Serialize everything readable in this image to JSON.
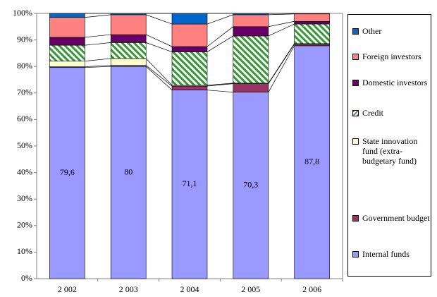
{
  "chart_data": {
    "type": "bar",
    "stacked": true,
    "grid": false,
    "legend": "right",
    "categories": [
      "2 002",
      "2 003",
      "2 004",
      "2 005",
      "2 006"
    ],
    "ylim": [
      0,
      100
    ],
    "yticks": [
      {
        "value": 0,
        "label": "0%"
      },
      {
        "value": 10,
        "label": "10%"
      },
      {
        "value": 20,
        "label": "20%"
      },
      {
        "value": 30,
        "label": "30%"
      },
      {
        "value": 40,
        "label": "40%"
      },
      {
        "value": 50,
        "label": "50%"
      },
      {
        "value": 60,
        "label": "60%"
      },
      {
        "value": 70,
        "label": "70%"
      },
      {
        "value": 80,
        "label": "80%"
      },
      {
        "value": 90,
        "label": "90%"
      },
      {
        "value": 100,
        "label": "100%"
      }
    ],
    "series": [
      {
        "name": "Internal funds",
        "color": "#9999ff",
        "values": [
          79.6,
          80,
          71.1,
          70.3,
          87.8
        ],
        "value_labels": [
          "79,6",
          "80",
          "71,1",
          "70,3",
          "87,8"
        ]
      },
      {
        "name": "Government budget",
        "color": "#993366",
        "values": [
          0.3,
          0.4,
          1.5,
          3.2,
          0.6
        ]
      },
      {
        "name": "State innovation fund (extra-budgetary fund)",
        "color": "#ffffcc",
        "values": [
          2.1,
          2.6,
          0.3,
          0.2,
          0.2
        ]
      },
      {
        "name": "Credit",
        "color": "#339933",
        "hatch": true,
        "values": [
          6,
          6,
          12.6,
          17.8,
          7.4
        ]
      },
      {
        "name": "Domestic investors",
        "color": "#660066",
        "values": [
          3,
          3,
          2,
          3.5,
          1
        ]
      },
      {
        "name": "Foreign investors",
        "color": "#ff8080",
        "values": [
          7.5,
          7.5,
          8.5,
          4.5,
          2.8
        ]
      },
      {
        "name": "Other",
        "color": "#0066cc",
        "values": [
          1.5,
          0.5,
          4,
          0.5,
          0.2
        ]
      }
    ]
  }
}
